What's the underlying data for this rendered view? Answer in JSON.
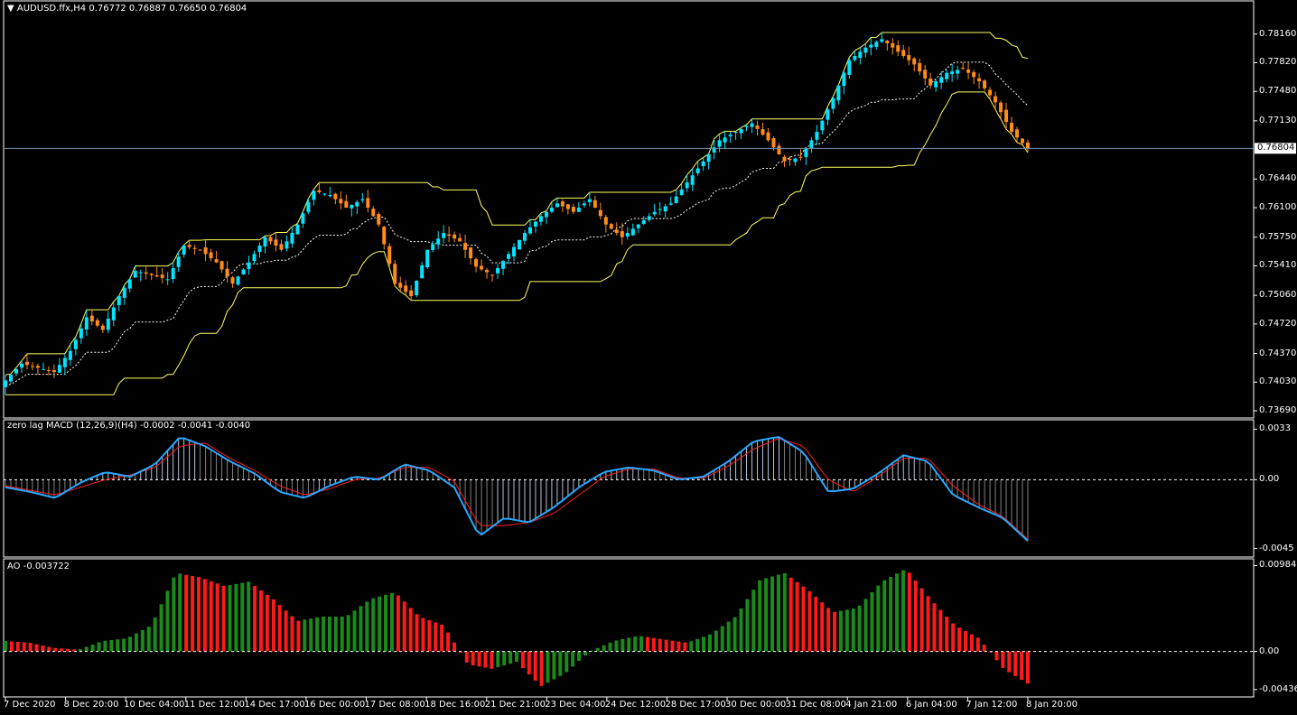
{
  "window": {
    "symbol_line": "AUDUSD.ffx,H4  0.76772 0.76887 0.76650 0.76804",
    "current_price_tag": "0.76804"
  },
  "colors": {
    "background": "#000000",
    "axis": "#ffffff",
    "bull_candle": "#00e5ff",
    "bear_candle": "#ff8c1a",
    "channel": "#ffff66",
    "midline": "#ffffff",
    "price_line": "#6f8fb0",
    "macd_line": "#29a8ff",
    "signal_line": "#ff2020",
    "hist_pos": "#b0c4de",
    "hist_neg": "#808080",
    "ao_up": "#1a8a1a",
    "ao_down": "#ff1a1a"
  },
  "price_axis": {
    "ticks": [
      "0.78160",
      "0.77820",
      "0.77480",
      "0.77130",
      "0.76440",
      "0.76100",
      "0.75750",
      "0.75410",
      "0.75060",
      "0.74720",
      "0.74370",
      "0.74030",
      "0.73690"
    ],
    "range": [
      0.7369,
      0.7835
    ]
  },
  "macd_panel": {
    "title": "zero lag MACD (12,26,9)(H4) -0.0002 -0.0041 -0.0040",
    "ticks": [
      "0.0033",
      "0.00",
      "-0.0045"
    ],
    "range": [
      -0.0047,
      0.0035
    ]
  },
  "ao_panel": {
    "title": "AO -0.003722",
    "ticks": [
      "0.009846",
      "0.00",
      "-0.004368"
    ],
    "range": [
      -0.0046,
      0.01
    ]
  },
  "time_axis": {
    "labels": [
      "7 Dec 2020",
      "8 Dec 20:00",
      "10 Dec 04:00",
      "11 Dec 12:00",
      "14 Dec 17:00",
      "16 Dec 00:00",
      "17 Dec 08:00",
      "18 Dec 16:00",
      "21 Dec 21:00",
      "23 Dec 04:00",
      "24 Dec 12:00",
      "28 Dec 17:00",
      "30 Dec 00:00",
      "31 Dec 08:00",
      "4 Jan 21:00",
      "6 Jan 04:00",
      "7 Jan 12:00",
      "8 Jan 20:00"
    ]
  },
  "chart_data": {
    "type": "candlestick",
    "instrument": "AUDUSD.ffx",
    "timeframe": "H4",
    "close_anchors": [
      0.7405,
      0.7425,
      0.742,
      0.7415,
      0.744,
      0.748,
      0.7465,
      0.7505,
      0.7535,
      0.753,
      0.7525,
      0.7565,
      0.756,
      0.7545,
      0.752,
      0.7545,
      0.7575,
      0.756,
      0.759,
      0.763,
      0.7625,
      0.761,
      0.762,
      0.759,
      0.752,
      0.7505,
      0.756,
      0.758,
      0.757,
      0.754,
      0.753,
      0.7555,
      0.758,
      0.76,
      0.7615,
      0.7605,
      0.762,
      0.759,
      0.7575,
      0.759,
      0.7605,
      0.7615,
      0.764,
      0.7665,
      0.769,
      0.77,
      0.771,
      0.769,
      0.7665,
      0.767,
      0.77,
      0.774,
      0.7785,
      0.78,
      0.781,
      0.7795,
      0.778,
      0.7755,
      0.777,
      0.7775,
      0.776,
      0.7735,
      0.77,
      0.768
    ],
    "macd_anchors": [
      -0.0005,
      -0.0008,
      -0.0012,
      -0.0002,
      0.0005,
      0.0002,
      0.001,
      0.0028,
      0.0022,
      0.0012,
      0.0004,
      -0.0008,
      -0.0012,
      -0.0004,
      0.0002,
      0.0,
      0.001,
      0.0006,
      -0.0005,
      -0.0037,
      -0.0025,
      -0.0028,
      -0.0018,
      -0.0005,
      0.0005,
      0.0008,
      0.0006,
      0.0,
      0.0002,
      0.0012,
      0.0025,
      0.0028,
      0.0018,
      -0.0008,
      -0.0006,
      0.0004,
      0.0016,
      0.0012,
      -0.001,
      -0.0018,
      -0.0025,
      -0.004
    ],
    "signal_anchors": [
      -0.0004,
      -0.0007,
      -0.001,
      -0.0005,
      0.0,
      0.0003,
      0.0008,
      0.0022,
      0.0024,
      0.0014,
      0.0006,
      -0.0004,
      -0.001,
      -0.0006,
      0.0,
      0.0001,
      0.0008,
      0.0008,
      -0.0001,
      -0.003,
      -0.003,
      -0.0028,
      -0.0022,
      -0.001,
      0.0002,
      0.0007,
      0.0007,
      0.0001,
      0.0001,
      0.0009,
      0.002,
      0.0027,
      0.0022,
      0.0,
      -0.0008,
      0.0002,
      0.0014,
      0.0014,
      -0.0004,
      -0.0016,
      -0.0024,
      -0.0039
    ],
    "ao_anchors": [
      0.0012,
      0.001,
      0.0004,
      0.0002,
      0.0012,
      0.0015,
      0.003,
      0.009,
      0.0085,
      0.0075,
      0.008,
      0.006,
      0.0035,
      0.004,
      0.004,
      0.006,
      0.0068,
      0.004,
      0.003,
      -0.0015,
      -0.002,
      -0.0012,
      -0.004,
      -0.0025,
      0.0,
      0.0012,
      0.0018,
      0.0014,
      0.001,
      0.002,
      0.004,
      0.0082,
      0.009,
      0.007,
      0.0045,
      0.005,
      0.008,
      0.0095,
      0.006,
      0.003,
      0.0015,
      -0.002,
      -0.0037
    ]
  }
}
